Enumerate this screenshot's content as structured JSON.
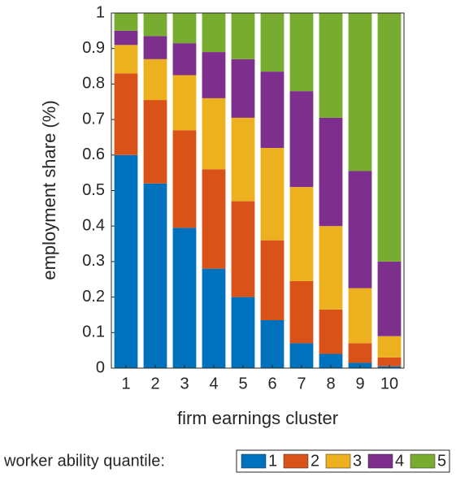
{
  "chart_data": {
    "type": "stacked-bar",
    "xlabel": "firm earnings cluster",
    "ylabel": "employment share (%)",
    "legend_title": "worker ability quantile:",
    "categories": [
      "1",
      "2",
      "3",
      "4",
      "5",
      "6",
      "7",
      "8",
      "9",
      "10"
    ],
    "ylim": [
      0,
      1
    ],
    "yticks": [
      0,
      0.1,
      0.2,
      0.3,
      0.4,
      0.5,
      0.6,
      0.7,
      0.8,
      0.9,
      1
    ],
    "legend_position": "bottom",
    "series": [
      {
        "name": "1",
        "color": "#0072BD",
        "values": [
          0.6,
          0.52,
          0.395,
          0.28,
          0.2,
          0.135,
          0.07,
          0.04,
          0.015,
          0.005
        ]
      },
      {
        "name": "2",
        "color": "#D95319",
        "values": [
          0.23,
          0.235,
          0.275,
          0.28,
          0.27,
          0.225,
          0.175,
          0.125,
          0.055,
          0.025
        ]
      },
      {
        "name": "3",
        "color": "#EDB120",
        "values": [
          0.08,
          0.115,
          0.155,
          0.2,
          0.235,
          0.26,
          0.265,
          0.235,
          0.155,
          0.06
        ]
      },
      {
        "name": "4",
        "color": "#7E2F8E",
        "values": [
          0.04,
          0.065,
          0.09,
          0.13,
          0.165,
          0.215,
          0.27,
          0.305,
          0.33,
          0.21
        ]
      },
      {
        "name": "5",
        "color": "#77AC30",
        "values": [
          0.05,
          0.065,
          0.085,
          0.11,
          0.13,
          0.165,
          0.22,
          0.295,
          0.445,
          0.7
        ]
      }
    ]
  }
}
